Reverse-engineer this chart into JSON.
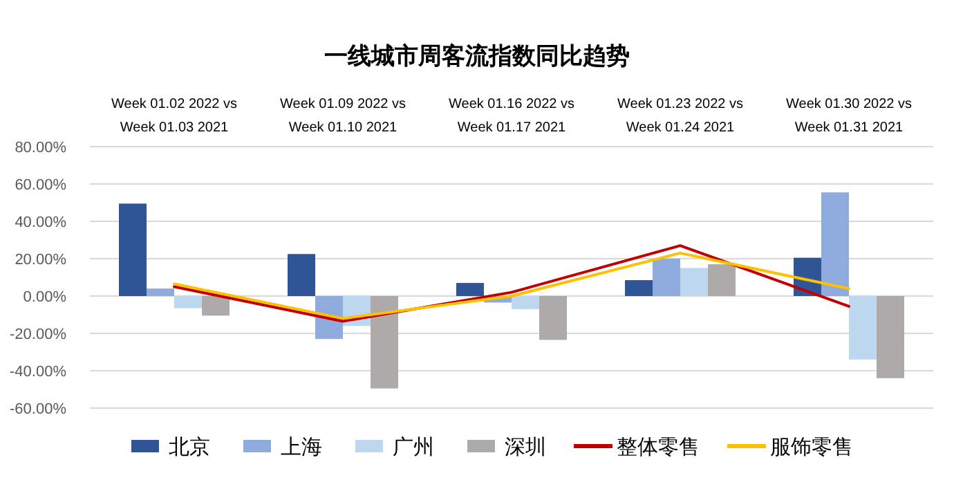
{
  "chart_data": {
    "type": "bar",
    "title": "一线城市周客流指数同比趋势",
    "categories": [
      "Week 01.02 2022  vs\nWeek 01.03 2021",
      "Week 01.09 2022  vs\nWeek 01.10 2021",
      "Week 01.16 2022  vs\nWeek 01.17 2021",
      "Week 01.23 2022  vs\nWeek 01.24 2021",
      "Week 01.30 2022  vs\nWeek 01.31 2021"
    ],
    "series": [
      {
        "name": "北京",
        "color": "#2f5597",
        "values": [
          49.5,
          22.5,
          7,
          8.5,
          20.5
        ]
      },
      {
        "name": "上海",
        "color": "#8faadc",
        "values": [
          4,
          -23,
          -3.5,
          20,
          55.5
        ]
      },
      {
        "name": "广州",
        "color": "#bdd7ee",
        "values": [
          -6.5,
          -16,
          -7,
          15,
          -34
        ]
      },
      {
        "name": "深圳",
        "color": "#aeaaaa",
        "values": [
          -10.5,
          -49.5,
          -23.5,
          17,
          -44
        ]
      },
      {
        "name": "整体零售",
        "type": "line",
        "color": "#c00000",
        "values": [
          5,
          -13.5,
          2,
          27,
          -5.5
        ]
      },
      {
        "name": "服饰零售",
        "type": "line",
        "color": "#ffc000",
        "values": [
          6.5,
          -12,
          0,
          23,
          4
        ]
      }
    ],
    "ylim": [
      -60,
      80
    ],
    "yticks": [
      {
        "value": -60,
        "label": "-60.00%"
      },
      {
        "value": -40,
        "label": "-40.00%"
      },
      {
        "value": -20,
        "label": "-20.00%"
      },
      {
        "value": 0,
        "label": "0.00%"
      },
      {
        "value": 20,
        "label": "20.00%"
      },
      {
        "value": 40,
        "label": "40.00%"
      },
      {
        "value": 60,
        "label": "60.00%"
      },
      {
        "value": 80,
        "label": "80.00%"
      }
    ],
    "grid": "y",
    "legend": "bottom"
  }
}
